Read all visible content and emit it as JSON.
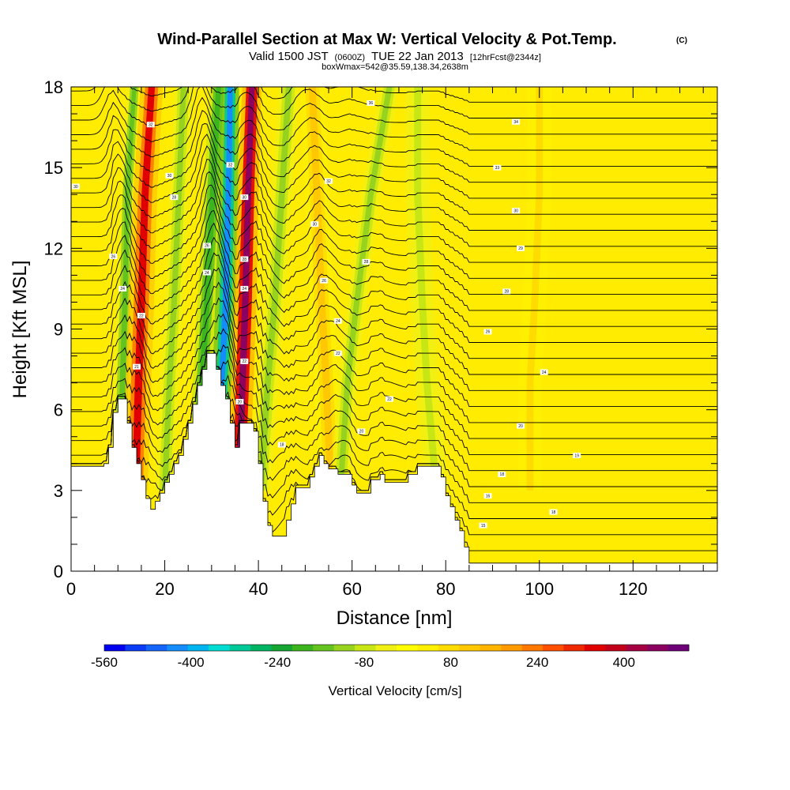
{
  "chart_data": {
    "type": "heatmap",
    "title": "Wind-Parallel Section at Max W: Vertical Velocity & Pot.Temp.",
    "title_suffix": "(C)",
    "subtitle_parts": [
      "Valid 1500 JST",
      "(0600Z)",
      "TUE 22 Jan 2013",
      "[12hrFcst@2344z]"
    ],
    "subtitle2": "boxWmax=542@35.59,138.34,2638m",
    "xlabel": "Distance [nm]",
    "ylabel": "Height [Kft MSL]",
    "xlim": [
      0,
      138
    ],
    "ylim": [
      0,
      18
    ],
    "x_ticks": [
      {
        "value": 0,
        "label": "0"
      },
      {
        "value": 20,
        "label": "20"
      },
      {
        "value": 40,
        "label": "40"
      },
      {
        "value": 60,
        "label": "60"
      },
      {
        "value": 80,
        "label": "80"
      },
      {
        "value": 100,
        "label": "100"
      },
      {
        "value": 120,
        "label": "120"
      }
    ],
    "y_ticks": [
      {
        "value": 0,
        "label": "0"
      },
      {
        "value": 3,
        "label": "3"
      },
      {
        "value": 6,
        "label": "6"
      },
      {
        "value": 9,
        "label": "9"
      },
      {
        "value": 12,
        "label": "12"
      },
      {
        "value": 15,
        "label": "15"
      },
      {
        "value": 18,
        "label": "18"
      }
    ],
    "colorbar": {
      "label": "Vertical Velocity [cm/s]",
      "range": [
        -560,
        520
      ],
      "colors": [
        "#0000f0",
        "#0a3cf5",
        "#1464f8",
        "#148cfa",
        "#00b4f0",
        "#00dcd2",
        "#00c896",
        "#00b464",
        "#14a532",
        "#3cb41e",
        "#64c31e",
        "#96d21e",
        "#c8e614",
        "#f0f014",
        "#ffff00",
        "#fff000",
        "#ffdc00",
        "#ffc800",
        "#ffb400",
        "#ff9b00",
        "#ff7800",
        "#ff5000",
        "#f02800",
        "#e10000",
        "#c30019",
        "#a50041",
        "#8c005f",
        "#6e0078"
      ],
      "tick_labels": [
        {
          "value": -560,
          "label": "-560"
        },
        {
          "value": -400,
          "label": "-400"
        },
        {
          "value": -240,
          "label": "-240"
        },
        {
          "value": -80,
          "label": "-80"
        },
        {
          "value": 80,
          "label": "80"
        },
        {
          "value": 240,
          "label": "240"
        },
        {
          "value": 400,
          "label": "400"
        }
      ]
    },
    "bands": [
      {
        "x": [
          10.5,
          11,
          11.5,
          12,
          13.5
        ],
        "w": [
          2.4,
          2.4,
          2.2,
          2.0,
          1.8
        ],
        "v": -160
      },
      {
        "x": [
          13.8,
          14.4,
          15.0,
          15.8,
          17.2
        ],
        "w": [
          3.0,
          3.2,
          3.2,
          3.0,
          2.8
        ],
        "v": 330
      },
      {
        "x": [
          20,
          21,
          22,
          23,
          24
        ],
        "w": [
          2.4,
          2.4,
          2.4,
          2.4,
          2.4
        ],
        "v": -130
      },
      {
        "x": [
          27.0,
          28.0,
          29.0,
          30.2,
          31.5
        ],
        "w": [
          2.2,
          2.4,
          2.4,
          2.4,
          2.2
        ],
        "v": -200
      },
      {
        "x": [
          31.2,
          32.2,
          33.0,
          33.6,
          34.0
        ],
        "w": [
          2.2,
          2.4,
          2.6,
          2.4,
          2.2
        ],
        "v": -420
      },
      {
        "x": [
          35.8,
          36.6,
          37.2,
          37.8,
          38.6
        ],
        "w": [
          2.6,
          2.8,
          2.8,
          2.6,
          2.4
        ],
        "v": 480
      },
      {
        "x": [
          40.5,
          42,
          43.5,
          45,
          46.5
        ],
        "w": [
          2.6,
          2.6,
          2.6,
          2.6,
          2.6
        ],
        "v": -120
      },
      {
        "x": [
          55.5,
          54.5,
          53.5,
          52.5,
          51.5
        ],
        "w": [
          3.0,
          3.0,
          3.0,
          3.0,
          3.0
        ],
        "v": 110
      },
      {
        "x": [
          57.5,
          59.0,
          61.0,
          64.0,
          68.0
        ],
        "w": [
          2.4,
          2.4,
          2.4,
          2.4,
          2.4
        ],
        "v": -110
      },
      {
        "x": [
          78,
          76,
          75,
          74,
          74
        ],
        "w": [
          3.0,
          3.0,
          3.0,
          3.0,
          3.0
        ],
        "v": -60
      },
      {
        "x": [
          98,
          98,
          99,
          100,
          100
        ],
        "w": [
          3.0,
          3.0,
          3.0,
          3.0,
          3.0
        ],
        "v": 60
      }
    ],
    "band_heights": [
      3,
      7,
      10,
      14,
      18
    ],
    "terrain": [
      [
        0,
        3.9
      ],
      [
        7,
        3.9
      ],
      [
        7,
        4.0
      ],
      [
        8,
        4.0
      ],
      [
        8,
        4.6
      ],
      [
        9,
        4.6
      ],
      [
        9,
        5.9
      ],
      [
        10,
        5.9
      ],
      [
        10,
        6.4
      ],
      [
        12,
        6.4
      ],
      [
        12,
        5.5
      ],
      [
        13,
        5.5
      ],
      [
        13,
        4.6
      ],
      [
        14,
        4.6
      ],
      [
        14,
        4.0
      ],
      [
        15,
        4.0
      ],
      [
        15,
        3.4
      ],
      [
        16,
        3.4
      ],
      [
        16,
        2.7
      ],
      [
        17,
        2.7
      ],
      [
        17,
        2.3
      ],
      [
        18,
        2.3
      ],
      [
        18,
        2.6
      ],
      [
        19,
        2.6
      ],
      [
        19,
        2.9
      ],
      [
        20,
        2.9
      ],
      [
        20,
        3.3
      ],
      [
        21,
        3.3
      ],
      [
        21,
        3.6
      ],
      [
        22,
        3.6
      ],
      [
        22,
        4.0
      ],
      [
        23,
        4.0
      ],
      [
        23,
        4.3
      ],
      [
        24,
        4.3
      ],
      [
        24,
        4.9
      ],
      [
        25,
        4.9
      ],
      [
        25,
        5.5
      ],
      [
        26,
        5.5
      ],
      [
        26,
        6.2
      ],
      [
        27,
        6.2
      ],
      [
        27,
        6.9
      ],
      [
        28,
        6.9
      ],
      [
        28,
        7.5
      ],
      [
        29,
        7.5
      ],
      [
        29,
        8.1
      ],
      [
        31,
        8.1
      ],
      [
        31,
        7.5
      ],
      [
        32,
        7.5
      ],
      [
        32,
        6.9
      ],
      [
        33,
        6.9
      ],
      [
        33,
        6.4
      ],
      [
        34,
        6.4
      ],
      [
        34,
        5.5
      ],
      [
        35,
        5.5
      ],
      [
        35,
        4.6
      ],
      [
        36,
        4.6
      ],
      [
        36,
        5.5
      ],
      [
        39,
        5.5
      ],
      [
        39,
        5.2
      ],
      [
        40,
        5.2
      ],
      [
        40,
        4.0
      ],
      [
        41,
        4.0
      ],
      [
        41,
        2.6
      ],
      [
        42,
        2.6
      ],
      [
        42,
        1.7
      ],
      [
        43,
        1.7
      ],
      [
        43,
        1.3
      ],
      [
        46,
        1.3
      ],
      [
        46,
        1.9
      ],
      [
        47,
        1.9
      ],
      [
        47,
        2.5
      ],
      [
        48,
        2.5
      ],
      [
        48,
        3.1
      ],
      [
        51,
        3.1
      ],
      [
        51,
        3.5
      ],
      [
        52,
        3.5
      ],
      [
        52,
        3.9
      ],
      [
        53,
        3.9
      ],
      [
        53,
        4.3
      ],
      [
        54,
        4.3
      ],
      [
        54,
        4.0
      ],
      [
        55,
        4.0
      ],
      [
        55,
        3.8
      ],
      [
        57,
        3.8
      ],
      [
        57,
        3.6
      ],
      [
        60,
        3.6
      ],
      [
        60,
        3.2
      ],
      [
        61,
        3.2
      ],
      [
        61,
        2.9
      ],
      [
        64,
        2.9
      ],
      [
        64,
        3.4
      ],
      [
        66,
        3.4
      ],
      [
        66,
        3.6
      ],
      [
        67,
        3.6
      ],
      [
        67,
        3.3
      ],
      [
        72,
        3.3
      ],
      [
        72,
        3.6
      ],
      [
        74,
        3.6
      ],
      [
        74,
        3.9
      ],
      [
        79,
        3.9
      ],
      [
        79,
        3.5
      ],
      [
        80,
        3.5
      ],
      [
        80,
        2.8
      ],
      [
        81,
        2.8
      ],
      [
        81,
        2.4
      ],
      [
        82,
        2.4
      ],
      [
        82,
        1.9
      ],
      [
        83,
        1.9
      ],
      [
        83,
        1.5
      ],
      [
        84,
        1.5
      ],
      [
        84,
        0.9
      ],
      [
        85,
        0.9
      ],
      [
        85,
        0.3
      ],
      [
        138,
        0.3
      ]
    ],
    "contour_labels": [
      {
        "x": 1,
        "y": 14.3,
        "text": "30"
      },
      {
        "x": 9,
        "y": 11.7,
        "text": "26"
      },
      {
        "x": 11,
        "y": 10.5,
        "text": "24"
      },
      {
        "x": 14,
        "y": 7.6,
        "text": "21"
      },
      {
        "x": 15,
        "y": 9.5,
        "text": "22"
      },
      {
        "x": 17,
        "y": 16.6,
        "text": "32"
      },
      {
        "x": 21,
        "y": 14.7,
        "text": "30"
      },
      {
        "x": 22,
        "y": 13.9,
        "text": "28"
      },
      {
        "x": 29,
        "y": 12.1,
        "text": "26"
      },
      {
        "x": 29,
        "y": 11.1,
        "text": "24"
      },
      {
        "x": 34,
        "y": 15.1,
        "text": "32"
      },
      {
        "x": 37,
        "y": 13.9,
        "text": "30"
      },
      {
        "x": 37,
        "y": 11.6,
        "text": "28"
      },
      {
        "x": 37,
        "y": 10.5,
        "text": "24"
      },
      {
        "x": 37,
        "y": 7.8,
        "text": "22"
      },
      {
        "x": 36,
        "y": 6.3,
        "text": "20"
      },
      {
        "x": 45,
        "y": 4.7,
        "text": "18"
      },
      {
        "x": 52,
        "y": 12.9,
        "text": "30"
      },
      {
        "x": 55,
        "y": 14.5,
        "text": "32"
      },
      {
        "x": 54,
        "y": 10.8,
        "text": "26"
      },
      {
        "x": 57,
        "y": 8.1,
        "text": "22"
      },
      {
        "x": 57,
        "y": 9.3,
        "text": "24"
      },
      {
        "x": 62,
        "y": 5.2,
        "text": "20"
      },
      {
        "x": 64,
        "y": 17.4,
        "text": "36"
      },
      {
        "x": 63,
        "y": 11.5,
        "text": "28"
      },
      {
        "x": 68,
        "y": 6.4,
        "text": "22"
      },
      {
        "x": 89,
        "y": 8.9,
        "text": "26"
      },
      {
        "x": 91,
        "y": 15.0,
        "text": "33"
      },
      {
        "x": 95,
        "y": 16.7,
        "text": "34"
      },
      {
        "x": 95,
        "y": 13.4,
        "text": "30"
      },
      {
        "x": 93,
        "y": 10.4,
        "text": "28"
      },
      {
        "x": 96,
        "y": 12.0,
        "text": "29"
      },
      {
        "x": 96,
        "y": 5.4,
        "text": "20"
      },
      {
        "x": 101,
        "y": 7.4,
        "text": "24"
      },
      {
        "x": 92,
        "y": 3.6,
        "text": "18"
      },
      {
        "x": 89,
        "y": 2.8,
        "text": "16"
      },
      {
        "x": 88,
        "y": 1.7,
        "text": "15"
      },
      {
        "x": 103,
        "y": 2.2,
        "text": "18"
      },
      {
        "x": 108,
        "y": 4.3,
        "text": "19"
      }
    ],
    "grid": false,
    "legend": "bottom"
  }
}
